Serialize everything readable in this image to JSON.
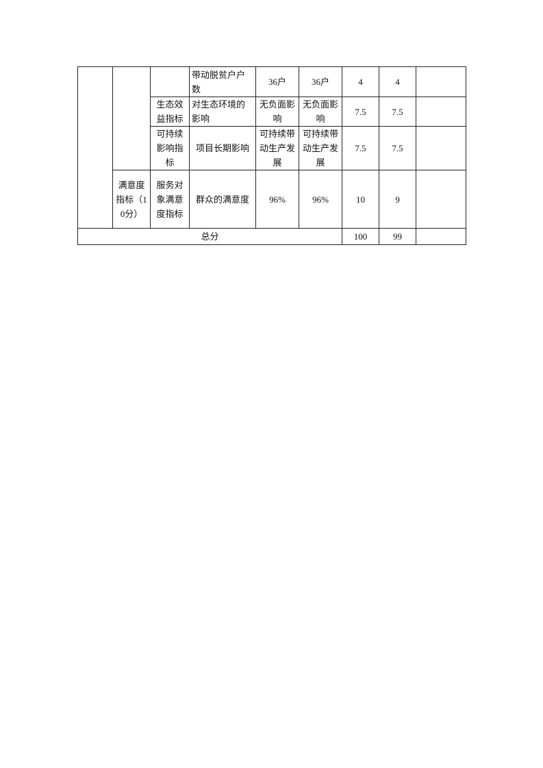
{
  "rows": [
    {
      "c3": "",
      "c4": "带动脱贫户户数",
      "c5": "36户",
      "c6": "36户",
      "c7": "4",
      "c8": "4",
      "c9": ""
    },
    {
      "c3": "生态效益指标",
      "c4": "对生态环境的影响",
      "c5": "无负面影响",
      "c6": "无负面影响",
      "c7": "7.5",
      "c8": "7.5",
      "c9": ""
    },
    {
      "c3": "可持续影响指标",
      "c4": "项目长期影响",
      "c5": "可持续带动生产发展",
      "c6": "可持续带动生产发展",
      "c7": "7.5",
      "c8": "7.5",
      "c9": ""
    },
    {
      "c2": "满意度指标（10分）",
      "c3": "服务对象满意度指标",
      "c4": "群众的满意度",
      "c5": "96%",
      "c6": "96%",
      "c7": "10",
      "c8": "9",
      "c9": ""
    }
  ],
  "total": {
    "label": "总分",
    "full_score": "100",
    "score": "99",
    "note": ""
  }
}
